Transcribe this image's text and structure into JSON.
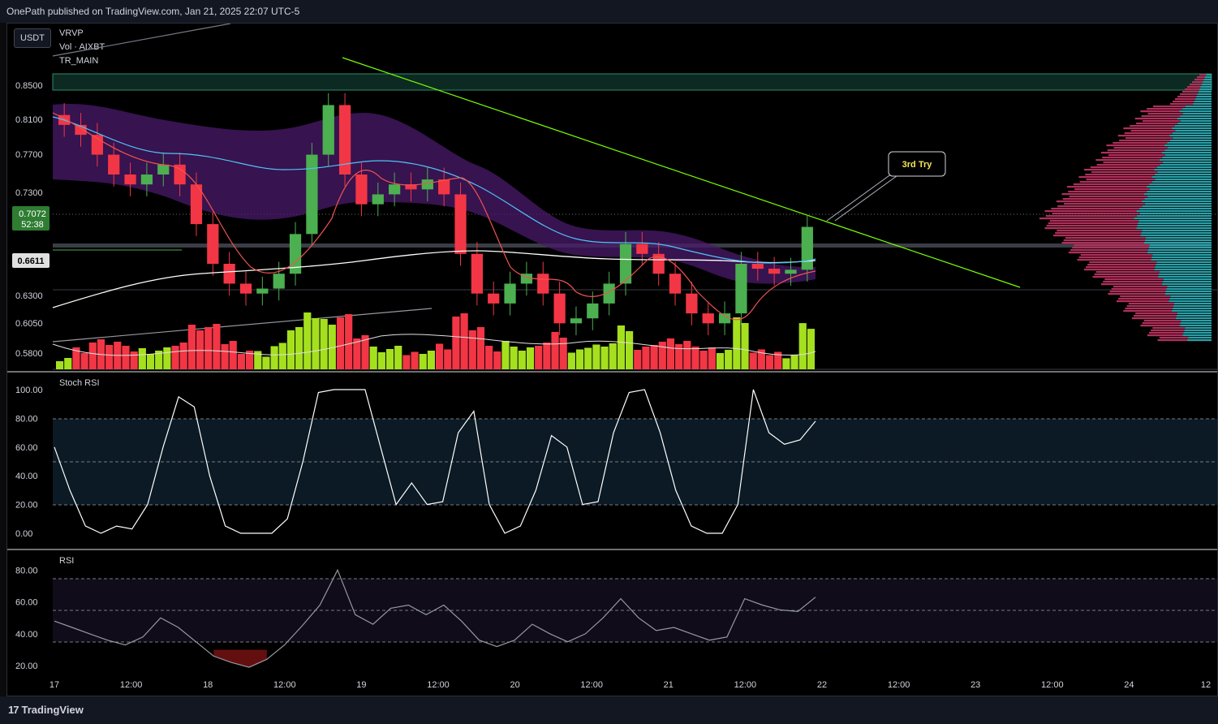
{
  "header": {
    "title": "OnePath published on TradingView.com, Jan 21, 2025 22:07 UTC-5"
  },
  "footer": {
    "brand": "TradingView"
  },
  "main_pane": {
    "currency_button": "USDT",
    "legend": [
      "VRVP",
      "Vol · AIXBT",
      "TR_MAIN"
    ],
    "annotation": "3rd Try",
    "price_badge": "0.7072",
    "countdown_badge": "52:38",
    "level_badge": "0.6611"
  },
  "stoch_pane": {
    "label": "Stoch RSI"
  },
  "rsi_pane": {
    "label": "RSI"
  },
  "chart_data": [
    {
      "type": "candlestick",
      "ylabel": "",
      "y_ticks": [
        "0.8500",
        "0.8100",
        "0.7700",
        "0.7300",
        "0.6300",
        "0.6050",
        "0.5800"
      ],
      "x_ticks": [
        "17",
        "12:00",
        "18",
        "12:00",
        "19",
        "12:00",
        "20",
        "12:00",
        "21",
        "12:00",
        "22",
        "12:00",
        "23",
        "12:00",
        "24",
        "12"
      ],
      "close_sample": [
        0.81,
        0.8,
        0.78,
        0.76,
        0.75,
        0.76,
        0.77,
        0.75,
        0.71,
        0.67,
        0.65,
        0.64,
        0.645,
        0.66,
        0.7,
        0.78,
        0.83,
        0.76,
        0.73,
        0.74,
        0.75,
        0.745,
        0.755,
        0.74,
        0.68,
        0.64,
        0.63,
        0.65,
        0.66,
        0.64,
        0.61,
        0.615,
        0.63,
        0.65,
        0.69,
        0.68,
        0.66,
        0.64,
        0.62,
        0.61,
        0.62,
        0.67,
        0.665,
        0.66,
        0.664,
        0.7072
      ],
      "last_price": 0.7072,
      "colors": {
        "up": "#4caf50",
        "down": "#f23645",
        "trendline": "#76ff03",
        "band": "#7b1fa2",
        "vol_up": "#a5e01e",
        "vol_down": "#f23645"
      }
    },
    {
      "type": "line",
      "name": "Stoch RSI",
      "y_ticks": [
        "100.00",
        "80.00",
        "60.00",
        "40.00",
        "20.00",
        "0.00"
      ],
      "ylim": [
        0,
        100
      ],
      "values": [
        60,
        30,
        5,
        0,
        5,
        3,
        20,
        60,
        95,
        88,
        40,
        5,
        0,
        0,
        0,
        10,
        50,
        98,
        100,
        100,
        100,
        60,
        20,
        35,
        20,
        22,
        70,
        85,
        20,
        0,
        5,
        30,
        68,
        60,
        20,
        22,
        70,
        98,
        100,
        70,
        30,
        5,
        0,
        0,
        20,
        100,
        70,
        62,
        65,
        78
      ]
    },
    {
      "type": "line",
      "name": "RSI",
      "y_ticks": [
        "80.00",
        "60.00",
        "40.00",
        "20.00"
      ],
      "ylim": [
        15,
        85
      ],
      "values": [
        48,
        44,
        40,
        36,
        33,
        38,
        50,
        44,
        35,
        26,
        22,
        19,
        24,
        33,
        45,
        58,
        80,
        52,
        46,
        56,
        58,
        52,
        58,
        48,
        36,
        32,
        36,
        46,
        40,
        35,
        40,
        50,
        62,
        50,
        42,
        44,
        40,
        36,
        38,
        62,
        58,
        55,
        54,
        63
      ]
    }
  ]
}
